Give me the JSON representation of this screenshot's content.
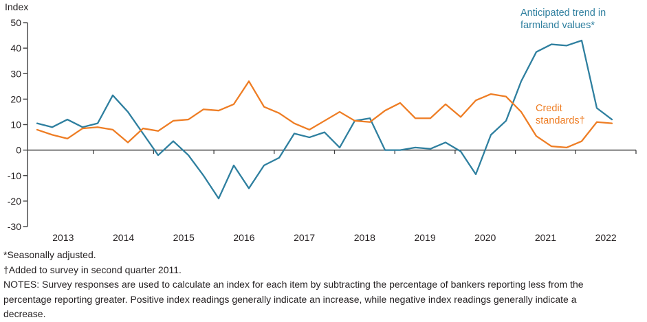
{
  "chart_data": {
    "type": "line",
    "title": "",
    "ylabel": "Index",
    "frequency": "quarterly",
    "x_range": "2013 Q1 - 2022 Q3",
    "grid": false,
    "zero_line": true,
    "legend_position": "inline-annotations",
    "ylim": [
      -30,
      50
    ],
    "y_ticks": [
      50,
      40,
      30,
      20,
      10,
      0,
      -10,
      -20,
      -30
    ],
    "x_year_labels": [
      "2013",
      "2014",
      "2015",
      "2016",
      "2017",
      "2018",
      "2019",
      "2020",
      "2021",
      "2022"
    ],
    "categories": [
      "2013 Q1",
      "2013 Q2",
      "2013 Q3",
      "2013 Q4",
      "2014 Q1",
      "2014 Q2",
      "2014 Q3",
      "2014 Q4",
      "2015 Q1",
      "2015 Q2",
      "2015 Q3",
      "2015 Q4",
      "2016 Q1",
      "2016 Q2",
      "2016 Q3",
      "2016 Q4",
      "2017 Q1",
      "2017 Q2",
      "2017 Q3",
      "2017 Q4",
      "2018 Q1",
      "2018 Q2",
      "2018 Q3",
      "2018 Q4",
      "2019 Q1",
      "2019 Q2",
      "2019 Q3",
      "2019 Q4",
      "2020 Q1",
      "2020 Q2",
      "2020 Q3",
      "2020 Q4",
      "2021 Q1",
      "2021 Q2",
      "2021 Q3",
      "2021 Q4",
      "2022 Q1",
      "2022 Q2",
      "2022 Q3"
    ],
    "series": [
      {
        "name": "Anticipated trend in farmland values*",
        "color": "#2E7F9F",
        "values": [
          10.5,
          9,
          12,
          9,
          10.5,
          21.5,
          15,
          6.5,
          -2,
          3.5,
          -2,
          -10,
          -19,
          -6,
          -15,
          -6,
          -3,
          6.5,
          5,
          7,
          1,
          11.5,
          12.5,
          0,
          0,
          1,
          0.5,
          3,
          -0.5,
          -9.5,
          6,
          11.5,
          27,
          38.5,
          41.5,
          41,
          43,
          16.5,
          12
        ]
      },
      {
        "name": "Credit standards†",
        "color": "#EE7D24",
        "values": [
          8,
          6,
          4.5,
          8.5,
          9,
          8,
          3,
          8.5,
          7.5,
          11.5,
          12,
          16,
          15.5,
          18,
          27,
          17,
          14.5,
          10.5,
          8,
          11.5,
          15,
          11.5,
          11,
          15.5,
          18.5,
          12.5,
          12.5,
          18,
          13,
          19.5,
          22,
          21,
          15,
          5.5,
          1.5,
          1,
          3.5,
          11,
          10.5
        ]
      }
    ]
  },
  "labels": {
    "y_axis_title": "Index",
    "series1_annotation_line1": "Anticipated trend in",
    "series1_annotation_line2": "farmland values*",
    "series2_annotation_line1": "Credit",
    "series2_annotation_line2": "standards†"
  },
  "footnotes": {
    "line1": "*Seasonally adjusted.",
    "line2": "†Added to survey in second quarter 2011.",
    "notes": "NOTES: Survey responses are used to calculate an index for each item by subtracting the percentage of bankers reporting less from the percentage reporting greater. Positive index readings generally indicate an increase, while negative index readings generally indicate a decrease."
  },
  "colors": {
    "farmland_line": "#2E7F9F",
    "credit_line": "#EE7D24",
    "axis": "#404041",
    "text": "#231F20"
  }
}
